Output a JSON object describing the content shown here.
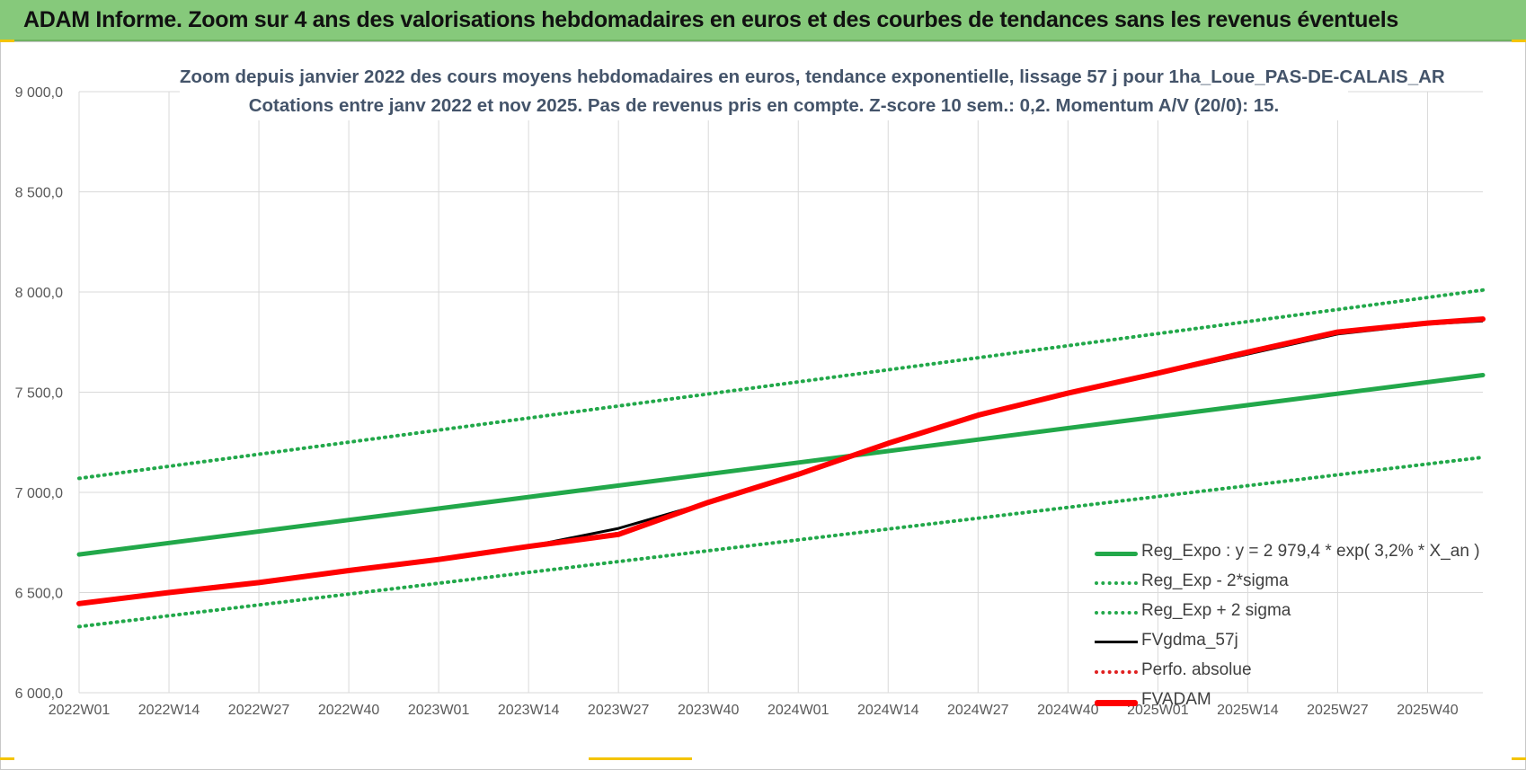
{
  "header": {
    "title": "ADAM Informe. Zoom sur 4 ans des valorisations hebdomadaires en euros et des courbes de tendances sans les revenus éventuels"
  },
  "colors": {
    "header_bg": "#86c97b",
    "reg_green": "#22a84a",
    "sigma_green": "#22a84a",
    "fvgdma_black": "#000000",
    "perfo_red": "#e02020",
    "fvadam_red": "#ff0000",
    "title_text": "#44546a",
    "grid": "#d9d9d9"
  },
  "chart_data": {
    "type": "line",
    "title_line1": "Zoom depuis janvier 2022 des cours moyens hebdomadaires en euros, tendance exponentielle, lissage 57 j pour 1ha_Loue_PAS-DE-CALAIS_AR",
    "title_line2": "Cotations entre janv 2022 et nov 2025. Pas de revenus pris en compte. Z-score 10 sem.: 0,2. Momentum A/V (20/0): 15.",
    "xlabel": "",
    "ylabel": "",
    "ylim": [
      6000,
      9000
    ],
    "yticks": [
      6000,
      6500,
      7000,
      7500,
      8000,
      8500,
      9000
    ],
    "ytick_labels": [
      "6 000,0",
      "6 500,0",
      "7 000,0",
      "7 500,0",
      "8 000,0",
      "8 500,0",
      "9 000,0"
    ],
    "x_index_range": [
      0,
      203
    ],
    "xticks": [
      0,
      13,
      26,
      39,
      52,
      65,
      78,
      91,
      104,
      117,
      130,
      143,
      156,
      169,
      182,
      195
    ],
    "xtick_labels": [
      "2022W01",
      "2022W14",
      "2022W27",
      "2022W40",
      "2023W01",
      "2023W14",
      "2023W27",
      "2023W40",
      "2024W01",
      "2024W14",
      "2024W27",
      "2024W40",
      "2025W01",
      "2025W14",
      "2025W27",
      "2025W40"
    ],
    "grid": true,
    "legend_position": "right",
    "series": [
      {
        "name": "Reg_Expo : y = 2 979,4 * exp( 3,2% *  X_an )",
        "style": "solid-thick",
        "color": "#22a84a",
        "x": [
          0,
          203
        ],
        "values": [
          6690,
          7585
        ]
      },
      {
        "name": "Reg_Exp - 2*sigma",
        "style": "dotted",
        "color": "#22a84a",
        "x": [
          0,
          203
        ],
        "values": [
          6330,
          7175
        ]
      },
      {
        "name": "Reg_Exp + 2 sigma",
        "style": "dotted",
        "color": "#22a84a",
        "x": [
          0,
          203
        ],
        "values": [
          7070,
          8010
        ]
      },
      {
        "name": "FVgdma_57j",
        "style": "solid",
        "color": "#000000",
        "x": [
          0,
          13,
          26,
          39,
          52,
          65,
          78,
          91,
          104,
          117,
          130,
          143,
          156,
          169,
          182,
          195,
          203
        ],
        "values": [
          6445,
          6500,
          6550,
          6610,
          6665,
          6730,
          6820,
          6950,
          7090,
          7240,
          7380,
          7490,
          7590,
          7690,
          7790,
          7840,
          7855
        ]
      },
      {
        "name": "Perfo. absolue",
        "style": "dotted",
        "color": "#e02020",
        "x": [
          0,
          13,
          26,
          39,
          52,
          65,
          78,
          91,
          104,
          117,
          130,
          143,
          156,
          169,
          182,
          195,
          203
        ],
        "values": [
          6445,
          6500,
          6550,
          6610,
          6665,
          6730,
          6795,
          6950,
          7090,
          7245,
          7385,
          7495,
          7595,
          7700,
          7800,
          7845,
          7865
        ]
      },
      {
        "name": "FVADAM",
        "style": "solid-thick",
        "color": "#ff0000",
        "x": [
          0,
          13,
          26,
          39,
          52,
          65,
          78,
          91,
          104,
          117,
          130,
          143,
          156,
          169,
          182,
          195,
          203
        ],
        "values": [
          6445,
          6500,
          6550,
          6610,
          6665,
          6730,
          6790,
          6950,
          7090,
          7245,
          7385,
          7495,
          7595,
          7700,
          7800,
          7845,
          7865
        ]
      }
    ]
  }
}
